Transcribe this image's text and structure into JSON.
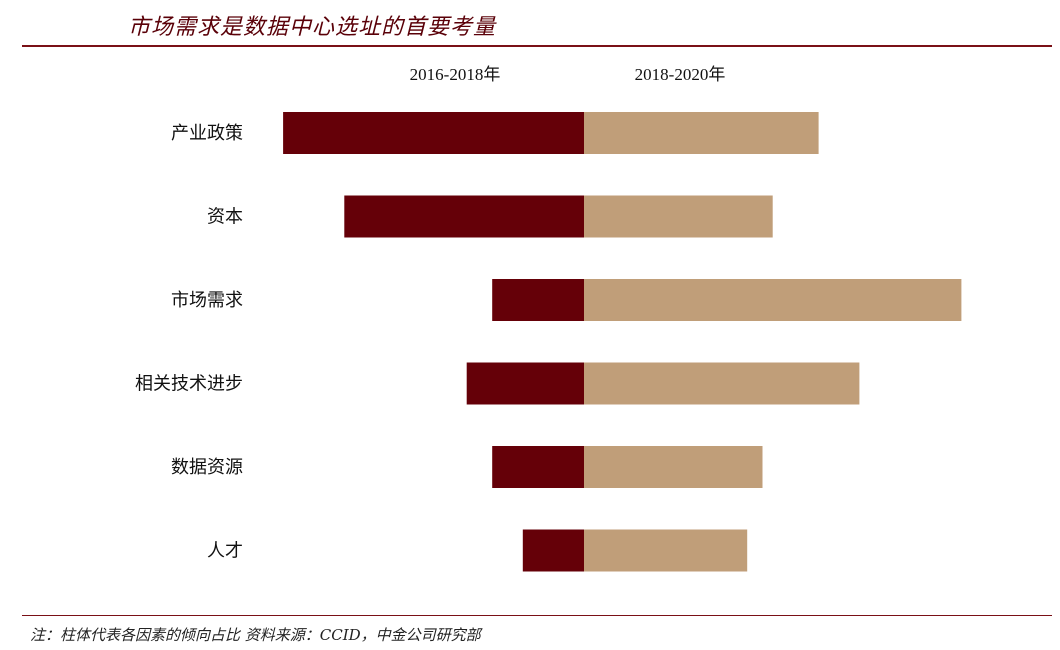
{
  "title": "市场需求是数据中心选址的首要考量",
  "footnote": "注：柱体代表各因素的倾向占比 资料来源：CCID，中金公司研究部",
  "colors": {
    "series_2016_2018": "#650008",
    "series_2018_2020": "#C09E79",
    "accent_rule": "#7A1016"
  },
  "chart_data": {
    "type": "bar",
    "orientation": "horizontal-diverging",
    "categories": [
      "产业政策",
      "资本",
      "市场需求",
      "相关技术进步",
      "数据资源",
      "人才"
    ],
    "series": [
      {
        "name": "2016-2018年",
        "side": "left",
        "values": [
          29.5,
          23.5,
          9.0,
          11.5,
          9.0,
          6.0
        ]
      },
      {
        "name": "2018-2020年",
        "side": "right",
        "values": [
          23.0,
          18.5,
          37.0,
          27.0,
          17.5,
          16.0
        ]
      }
    ],
    "xlim": [
      -30,
      37
    ],
    "grid": false,
    "legend": "top"
  }
}
